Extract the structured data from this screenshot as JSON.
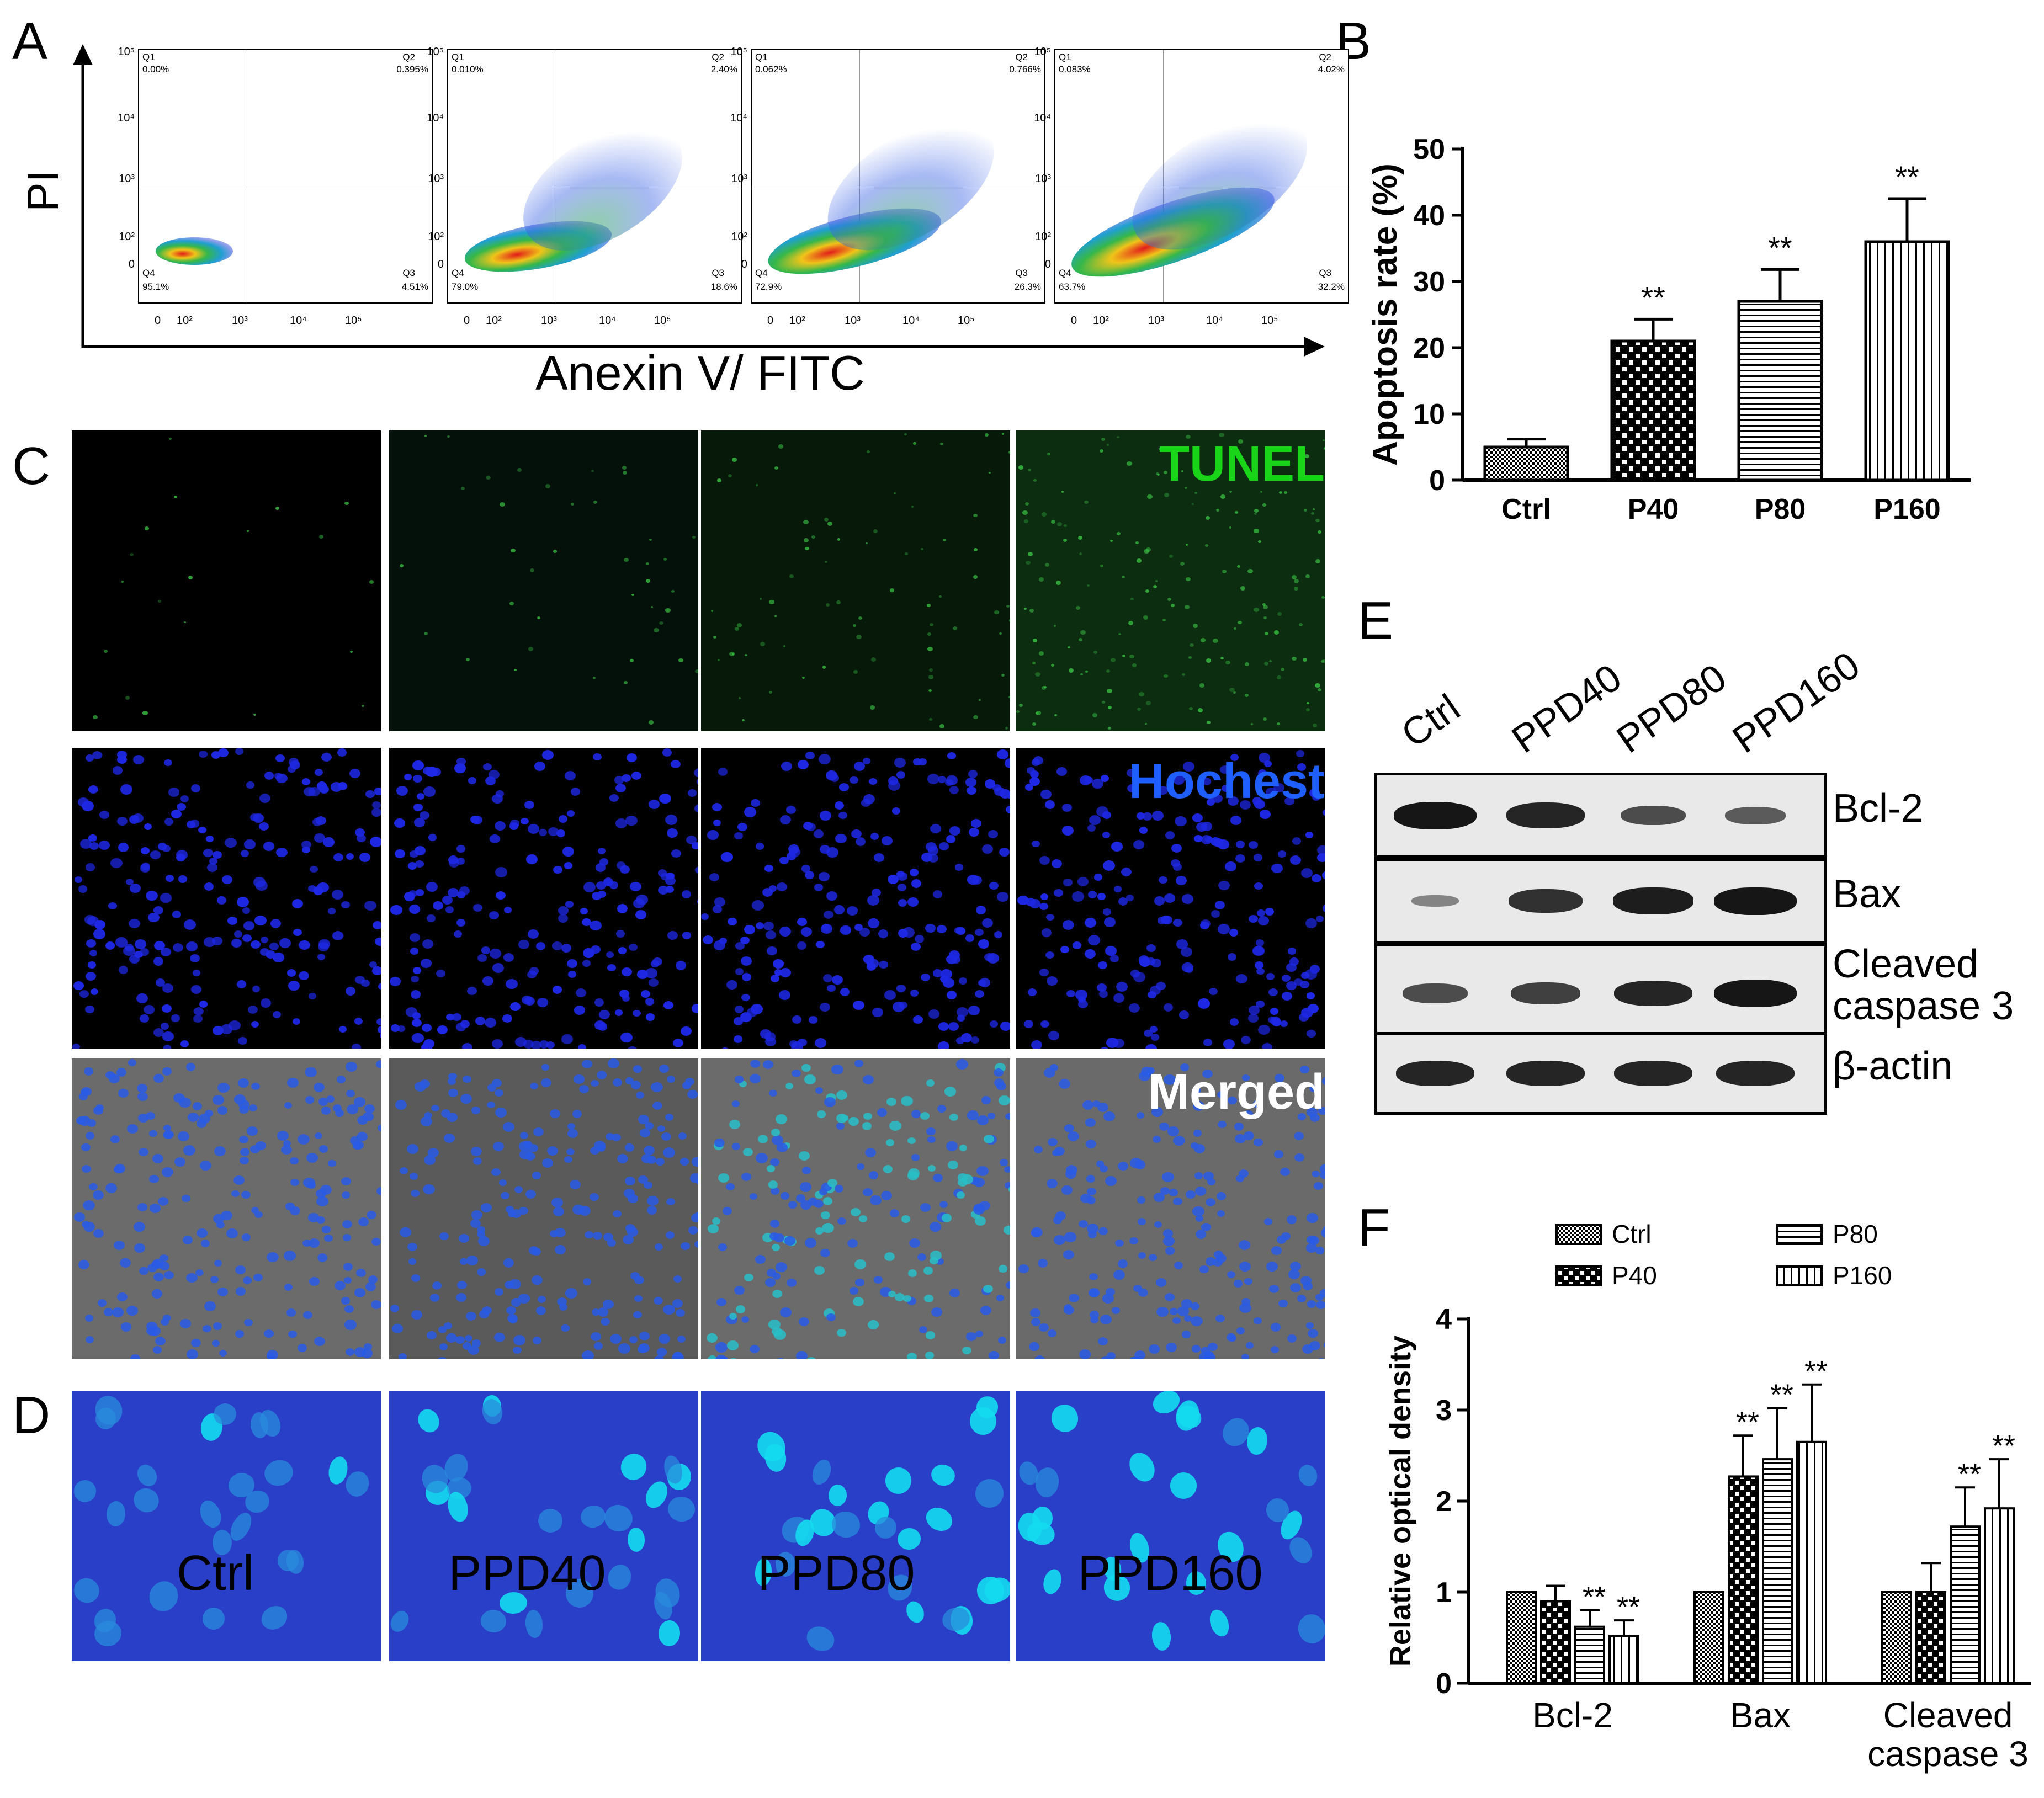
{
  "panel_labels": {
    "a": "A",
    "b": "B",
    "c": "C",
    "d": "D",
    "e": "E",
    "f": "F"
  },
  "panel_a": {
    "y_axis_label": "PI",
    "x_axis_label": "Anexin V/ FITC",
    "y_tick_labels": [
      "10⁵",
      "10⁴",
      "10³",
      "10²",
      "0"
    ],
    "x_tick_labels": [
      "0",
      "10²",
      "10³",
      "10⁴",
      "10⁵"
    ],
    "plots": [
      {
        "q1_label": "Q1",
        "q1": "0.00%",
        "q2_label": "Q2",
        "q2": "0.395%",
        "q3_label": "Q3",
        "q3": "4.51%",
        "q4_label": "Q4",
        "q4": "95.1%"
      },
      {
        "q1_label": "Q1",
        "q1": "0.010%",
        "q2_label": "Q2",
        "q2": "2.40%",
        "q3_label": "Q3",
        "q3": "18.6%",
        "q4_label": "Q4",
        "q4": "79.0%"
      },
      {
        "q1_label": "Q1",
        "q1": "0.062%",
        "q2_label": "Q2",
        "q2": "0.766%",
        "q3_label": "Q3",
        "q3": "26.3%",
        "q4_label": "Q4",
        "q4": "72.9%"
      },
      {
        "q1_label": "Q1",
        "q1": "0.083%",
        "q2_label": "Q2",
        "q2": "4.02%",
        "q3_label": "Q3",
        "q3": "32.2%",
        "q4_label": "Q4",
        "q4": "63.7%"
      }
    ]
  },
  "panel_c": {
    "row_labels": [
      "TUNEL",
      "Hochest",
      "Merged"
    ],
    "row_label_colors": [
      "#19d419",
      "#1f5fff",
      "#ffffff"
    ]
  },
  "conditions": [
    "Ctrl",
    "PPD40",
    "PPD80",
    "PPD160"
  ],
  "panel_e": {
    "lanes": [
      "Ctrl",
      "PPD40",
      "PPD80",
      "PPD160"
    ],
    "blots": [
      {
        "protein": "Bcl-2",
        "intensity": [
          1.0,
          0.9,
          0.6,
          0.5
        ]
      },
      {
        "protein": "Bax",
        "intensity": [
          0.2,
          0.8,
          0.95,
          1.0
        ]
      },
      {
        "protein": "Cleaved\ncaspase 3",
        "intensity": [
          0.6,
          0.7,
          0.9,
          1.0
        ]
      },
      {
        "protein": "β-actin",
        "intensity": [
          0.9,
          0.9,
          0.9,
          0.9
        ]
      }
    ]
  },
  "chart_data": [
    {
      "type": "bar",
      "panel": "B",
      "ylabel": "Apoptosis rate (%)",
      "categories": [
        "Ctrl",
        "P40",
        "P80",
        "P160"
      ],
      "values": [
        5,
        21,
        27,
        36
      ],
      "errors": [
        1.2,
        3.3,
        4.8,
        6.5
      ],
      "significance": [
        "",
        "**",
        "**",
        "**"
      ],
      "ylim": [
        0,
        50
      ],
      "yticks": [
        0,
        10,
        20,
        30,
        40,
        50
      ],
      "patterns": [
        "dense-dots",
        "checker",
        "horizontal-lines",
        "vertical-lines"
      ]
    },
    {
      "type": "bar",
      "panel": "F",
      "ylabel": "Relative optical density",
      "categories": [
        "Bcl-2",
        "Bax",
        "Cleaved\ncaspase 3"
      ],
      "series": [
        {
          "name": "Ctrl",
          "values": [
            1.0,
            1.0,
            1.0
          ],
          "errors": [
            0,
            0,
            0
          ],
          "significance": [
            "",
            "",
            ""
          ],
          "pattern": "dense-dots"
        },
        {
          "name": "P40",
          "values": [
            0.9,
            2.27,
            1.0
          ],
          "errors": [
            0.17,
            0.45,
            0.32
          ],
          "significance": [
            "",
            "**",
            ""
          ],
          "pattern": "checker"
        },
        {
          "name": "P80",
          "values": [
            0.62,
            2.46,
            1.72
          ],
          "errors": [
            0.18,
            0.56,
            0.43
          ],
          "significance": [
            "**",
            "**",
            "**"
          ],
          "pattern": "horizontal-lines"
        },
        {
          "name": "P160",
          "values": [
            0.52,
            2.65,
            1.92
          ],
          "errors": [
            0.17,
            0.63,
            0.54
          ],
          "significance": [
            "**",
            "**",
            "**"
          ],
          "pattern": "vertical-lines"
        }
      ],
      "ylim": [
        0,
        4
      ],
      "yticks": [
        0,
        1,
        2,
        3,
        4
      ],
      "legend_position": "top"
    }
  ]
}
